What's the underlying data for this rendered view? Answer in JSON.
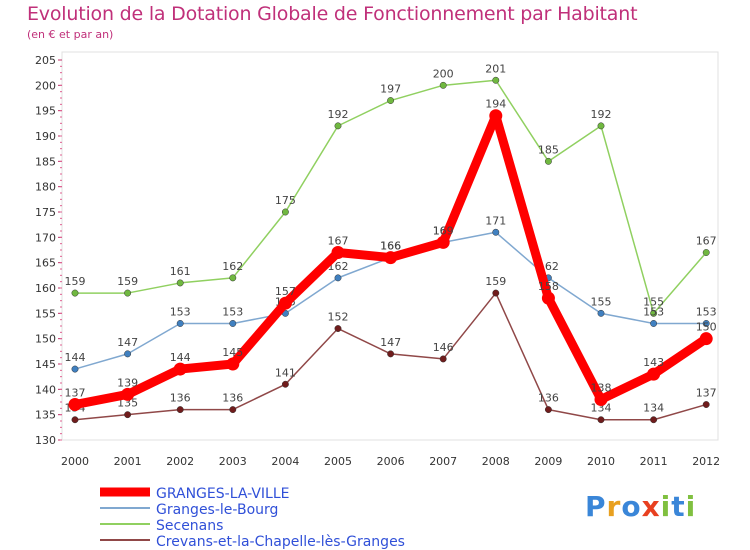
{
  "chart_data": {
    "type": "line",
    "title": "Evolution de la Dotation Globale de Fonctionnement par Habitant",
    "subtitle": "(en € et par an)",
    "x": [
      "2000",
      "2001",
      "2002",
      "2003",
      "2004",
      "2005",
      "2006",
      "2007",
      "2008",
      "2009",
      "2010",
      "2011",
      "2012"
    ],
    "ylim": [
      130,
      205
    ],
    "yticks": [
      130,
      135,
      140,
      145,
      150,
      155,
      160,
      165,
      170,
      175,
      180,
      185,
      190,
      195,
      200,
      205
    ],
    "series": [
      {
        "name": "Secenans",
        "color": "#90d060",
        "marker": "#70b840",
        "values": [
          159,
          159,
          161,
          162,
          175,
          192,
          197,
          200,
          201,
          185,
          192,
          155,
          167
        ],
        "labels": [
          "159",
          "159",
          "161",
          "162",
          "175",
          "192",
          "197",
          "200",
          "201",
          "185",
          "192",
          "155",
          "167"
        ]
      },
      {
        "name": "Granges-le-Bourg",
        "color": "#80a8d0",
        "marker": "#4080c0",
        "values": [
          144,
          147,
          153,
          153,
          155,
          162,
          166,
          169,
          171,
          162,
          155,
          153,
          153
        ],
        "labels": [
          "144",
          "147",
          "153",
          "153",
          "155",
          "162",
          "166",
          "169",
          "171",
          "162",
          "155",
          "153",
          "153"
        ]
      },
      {
        "name": "Crevans-et-la-Chapelle-lès-Granges",
        "color": "#904848",
        "marker": "#701c1c",
        "values": [
          134,
          135,
          136,
          136,
          141,
          152,
          147,
          146,
          159,
          136,
          134,
          134,
          137
        ],
        "labels": [
          "134",
          "135",
          "136",
          "136",
          "141",
          "152",
          "147",
          "146",
          "159",
          "136",
          "134",
          "134",
          "137"
        ]
      },
      {
        "name": "GRANGES-LA-VILLE",
        "color": "#ff0000",
        "marker": "#ff0000",
        "values": [
          137,
          139,
          144,
          145,
          157,
          167,
          166,
          169,
          194,
          158,
          138,
          143,
          150
        ],
        "labels": [
          "137",
          "139",
          "144",
          "145",
          "157",
          "167",
          "166",
          "169",
          "194",
          "158",
          "138",
          "143",
          "150"
        ]
      }
    ],
    "legend": [
      {
        "name": "GRANGES-LA-VILLE",
        "color": "#ff0000",
        "thick": true
      },
      {
        "name": "Granges-le-Bourg",
        "color": "#80a8d0",
        "thick": false
      },
      {
        "name": "Secenans",
        "color": "#90d060",
        "thick": false
      },
      {
        "name": "Crevans-et-la-Chapelle-lès-Granges",
        "color": "#904848",
        "thick": false
      }
    ],
    "legend_placement": "bottom-left",
    "grid": false
  },
  "logo": {
    "text": "Proxiti",
    "letters": [
      "P",
      "r",
      "o",
      "x",
      "i",
      "t",
      "i"
    ],
    "colors": [
      "#3a86d8",
      "#e8a020",
      "#3a86d8",
      "#e84020",
      "#80c040",
      "#3a86d8",
      "#80c040"
    ]
  }
}
